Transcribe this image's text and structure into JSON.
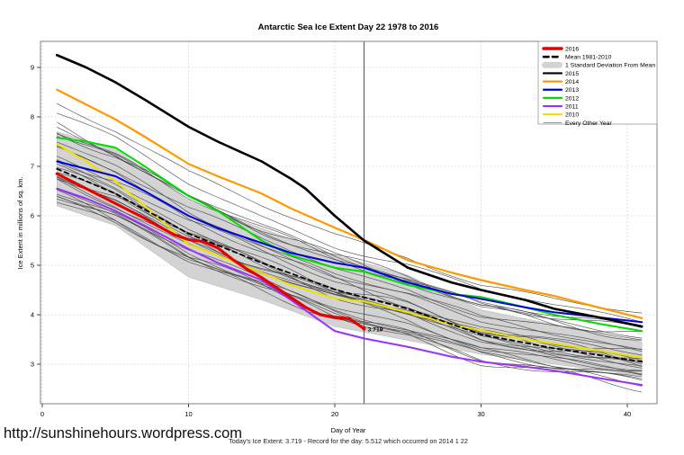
{
  "page": {
    "title": "Antarctic Sea Ice Extent Day 22 1978 to 2016",
    "url_text": "http://sunshinehours.wordpress.com",
    "footer_caption": "Today's Ice Extent: 3.719  - Record for the day: 5.512 which occurred on 2014 1 22"
  },
  "chart_data": {
    "type": "line",
    "title": "Antarctic Sea Ice Extent Day 22 1978 to 2016",
    "xlabel": "Day of Year",
    "ylabel": "Ice Extent in millions of sq. km.",
    "xlim": [
      0,
      41.5
    ],
    "ylim": [
      2.2,
      9.5
    ],
    "xticks": [
      0,
      10,
      20,
      30,
      40
    ],
    "yticks": [
      3,
      4,
      5,
      6,
      7,
      8,
      9
    ],
    "grid": true,
    "legend_position": "top-right",
    "vline": {
      "x": 22,
      "color": "#555555"
    },
    "annotation": {
      "text": "3.719",
      "x": 22,
      "y": 3.719,
      "color": "#e60000"
    },
    "band": {
      "label": "1 Standard Deviation From Mean",
      "color": "#d3d3d3",
      "x": [
        1,
        5,
        10,
        15,
        20,
        22,
        25,
        30,
        35,
        41
      ],
      "top": [
        7.7,
        7.35,
        6.3,
        5.75,
        5.2,
        5.05,
        4.8,
        4.1,
        3.8,
        3.45
      ],
      "bottom": [
        6.2,
        5.8,
        4.76,
        4.3,
        3.76,
        3.65,
        3.48,
        3.2,
        3.0,
        2.76
      ]
    },
    "series": [
      {
        "name": "2011",
        "color": "#9b30ff",
        "width": 2.0,
        "x": [
          1,
          3,
          5,
          7,
          10,
          12,
          15,
          17,
          20,
          22,
          25,
          28,
          30,
          33,
          35,
          38,
          41
        ],
        "y": [
          6.55,
          6.35,
          6.1,
          5.8,
          5.33,
          5.05,
          4.7,
          4.3,
          3.67,
          3.52,
          3.35,
          3.15,
          3.05,
          2.95,
          2.87,
          2.72,
          2.58
        ]
      },
      {
        "name": "2010",
        "color": "#f0e000",
        "width": 2.0,
        "x": [
          1,
          3,
          5,
          7,
          10,
          12,
          15,
          17,
          20,
          22,
          25,
          28,
          30,
          33,
          35,
          38,
          41
        ],
        "y": [
          7.45,
          7.1,
          6.7,
          6.2,
          5.42,
          5.2,
          4.85,
          4.6,
          4.33,
          4.27,
          4.05,
          3.8,
          3.69,
          3.5,
          3.42,
          3.28,
          3.13
        ]
      },
      {
        "name": "2012",
        "color": "#00dd00",
        "width": 2.0,
        "x": [
          1,
          3,
          5,
          7,
          10,
          12,
          15,
          17,
          20,
          22,
          25,
          28,
          30,
          33,
          35,
          38,
          41
        ],
        "y": [
          7.58,
          7.5,
          7.38,
          7.0,
          6.4,
          6.1,
          5.5,
          5.2,
          4.95,
          4.87,
          4.6,
          4.42,
          4.36,
          4.15,
          4.0,
          3.82,
          3.67
        ]
      },
      {
        "name": "2013",
        "color": "#0000dd",
        "width": 2.0,
        "x": [
          1,
          3,
          5,
          7,
          10,
          12,
          15,
          17,
          20,
          22,
          25,
          28,
          30,
          33,
          35,
          38,
          41
        ],
        "y": [
          7.1,
          6.95,
          6.8,
          6.5,
          6.0,
          5.75,
          5.45,
          5.25,
          5.05,
          4.95,
          4.65,
          4.42,
          4.32,
          4.15,
          4.05,
          3.95,
          3.85
        ]
      },
      {
        "name": "2014",
        "color": "#ff9900",
        "width": 2.2,
        "x": [
          1,
          3,
          5,
          7,
          10,
          12,
          15,
          17,
          20,
          22,
          25,
          28,
          30,
          33,
          35,
          38,
          41
        ],
        "y": [
          8.55,
          8.25,
          7.95,
          7.6,
          7.05,
          6.8,
          6.45,
          6.15,
          5.76,
          5.512,
          5.1,
          4.85,
          4.7,
          4.5,
          4.38,
          4.15,
          3.93
        ]
      },
      {
        "name": "2015",
        "color": "#000000",
        "width": 2.6,
        "x": [
          1,
          3,
          5,
          7,
          10,
          12,
          15,
          17,
          18,
          20,
          22,
          25,
          28,
          30,
          33,
          35,
          38,
          41
        ],
        "y": [
          9.25,
          9.0,
          8.7,
          8.35,
          7.8,
          7.5,
          7.1,
          6.75,
          6.55,
          6.0,
          5.5,
          4.95,
          4.65,
          4.5,
          4.3,
          4.12,
          3.95,
          3.76
        ]
      },
      {
        "name": "Mean 1981-2010",
        "color": "#000000",
        "width": 1.8,
        "dash": "5,4",
        "x": [
          1,
          5,
          10,
          15,
          20,
          22,
          25,
          30,
          35,
          41
        ],
        "y": [
          6.95,
          6.45,
          5.64,
          5.05,
          4.51,
          4.35,
          4.12,
          3.6,
          3.32,
          3.05
        ]
      },
      {
        "name": "2016",
        "color": "#e60000",
        "width": 3.2,
        "x": [
          1,
          2,
          3,
          4,
          5,
          6,
          7,
          8,
          9,
          10,
          11,
          12,
          13,
          14,
          15,
          16,
          17,
          18,
          19,
          20,
          21,
          22
        ],
        "y": [
          6.85,
          6.7,
          6.55,
          6.4,
          6.25,
          6.1,
          5.95,
          5.78,
          5.62,
          5.52,
          5.48,
          5.35,
          5.12,
          4.92,
          4.75,
          4.55,
          4.35,
          4.15,
          4.0,
          3.95,
          3.92,
          3.719
        ]
      }
    ],
    "other_years": {
      "label": "Every Other Year",
      "count": 28,
      "color": "#3f3f3f",
      "width": 0.65,
      "seed": 13,
      "start_range": [
        6.15,
        8.3
      ],
      "end_range": [
        2.5,
        3.95
      ]
    },
    "legend": [
      {
        "label": "2016",
        "swatch": "line",
        "color": "#e60000",
        "width": 3.4
      },
      {
        "label": "Mean 1981-2010",
        "swatch": "dash",
        "color": "#000000",
        "width": 2.6
      },
      {
        "label": "1 Standard Deviation From Mean",
        "swatch": "band",
        "color": "#d3d3d3",
        "width": 0
      },
      {
        "label": "2015",
        "swatch": "line",
        "color": "#000000",
        "width": 2.2
      },
      {
        "label": "2014",
        "swatch": "line",
        "color": "#ff9900",
        "width": 2.2
      },
      {
        "label": "2013",
        "swatch": "line",
        "color": "#0000dd",
        "width": 2.2
      },
      {
        "label": "2012",
        "swatch": "line",
        "color": "#00dd00",
        "width": 2.2
      },
      {
        "label": "2011",
        "swatch": "line",
        "color": "#9b30ff",
        "width": 2.2
      },
      {
        "label": "2010",
        "swatch": "line",
        "color": "#f0e000",
        "width": 2.2
      },
      {
        "label": "Every Other Year",
        "swatch": "thin",
        "color": "#777777",
        "width": 0.8
      }
    ]
  }
}
